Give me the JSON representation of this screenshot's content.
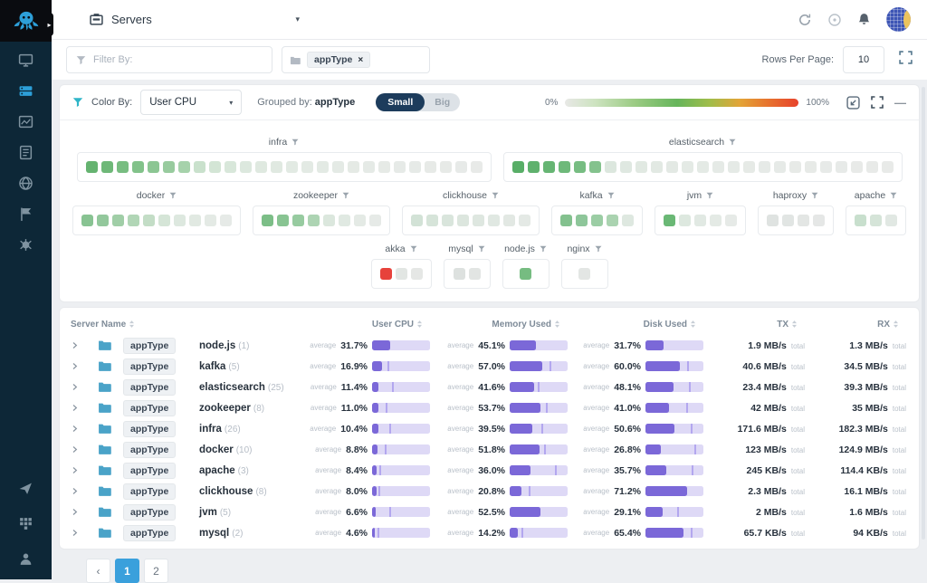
{
  "colors": {
    "accent_purple": "#7b68d8",
    "purple_track": "#ded9f6",
    "green": "#65b370",
    "red": "#e7423b",
    "sidebar_bg": "#0d2737",
    "active_blue": "#2d9fd8"
  },
  "sidebar": {
    "items": [
      {
        "name": "infrastructure",
        "active": false
      },
      {
        "name": "servers",
        "active": true
      },
      {
        "name": "dashboards",
        "active": false
      },
      {
        "name": "logs",
        "active": false
      },
      {
        "name": "alerts",
        "active": false
      },
      {
        "name": "experience",
        "active": false
      },
      {
        "name": "synthetics",
        "active": false
      }
    ],
    "bottom_items": [
      {
        "name": "send"
      },
      {
        "name": "apps"
      },
      {
        "name": "account"
      }
    ]
  },
  "topbar": {
    "app_selector": "Servers",
    "icons": [
      "refresh-icon",
      "status-icon",
      "bell-icon",
      "avatar"
    ]
  },
  "filter_bar": {
    "filter_placeholder": "Filter By:",
    "chip_label": "appType",
    "chip_close": "×",
    "rows_per_page_label": "Rows Per Page:",
    "rows_per_page_value": "10"
  },
  "heatmap": {
    "color_by_label": "Color By:",
    "color_by_value": "User CPU",
    "grouped_by_label": "Grouped by:",
    "grouped_by_value": "appType",
    "toggle_small": "Small",
    "toggle_big": "Big",
    "toggle_selected": "Small",
    "scale_min": "0%",
    "scale_max": "100%",
    "more_label": "—",
    "rows": [
      [
        {
          "name": "infra",
          "cells": [
            "#65b370",
            "#6eb878",
            "#78bd81",
            "#82c28a",
            "#8cc693",
            "#98cb9e",
            "#a6d2ab",
            "#c9e1cc",
            "#d3e5d5",
            "#d8e7da",
            "#dce8de",
            "#dfe9e0",
            "#e0e9e1",
            "#e2eae3",
            "#e3eae4",
            "#e3eae4",
            "#e4eae5",
            "#e5eae5",
            "#e5eae6",
            "#e6eae6",
            "#e6eae7",
            "#e6eae7",
            "#e7eae7",
            "#e7eae7",
            "#e7eae8",
            "#e8eae8"
          ]
        },
        {
          "name": "elasticsearch",
          "cells": [
            "#58ae67",
            "#5fb16d",
            "#66b573",
            "#6eb97a",
            "#77bd82",
            "#84c28d",
            "#dce7de",
            "#dfe8e1",
            "#e1e9e2",
            "#e2e9e3",
            "#e3e9e4",
            "#e4eae5",
            "#e4eae5",
            "#e5eae6",
            "#e5eae6",
            "#e6eae6",
            "#e6eae7",
            "#e6eae7",
            "#e7eae7",
            "#e7eae7",
            "#e7eae8",
            "#e7eae8",
            "#e8eae8",
            "#e8eae8",
            "#e8eae8"
          ]
        }
      ],
      [
        {
          "name": "docker",
          "cells": [
            "#88c392",
            "#93c89c",
            "#a0cea7",
            "#b1d6b6",
            "#c3ddc6",
            "#d5e5d7",
            "#dde8df",
            "#e1e9e2",
            "#e4eae5",
            "#e6eae7"
          ]
        },
        {
          "name": "zookeeper",
          "cells": [
            "#7cbe87",
            "#88c492",
            "#97cba0",
            "#add4b3",
            "#dbe7dd",
            "#e0e9e2",
            "#e4eae5",
            "#e6eae7"
          ]
        },
        {
          "name": "clickhouse",
          "cells": [
            "#d2e2d6",
            "#d6e4d9",
            "#d9e5dc",
            "#dce6de",
            "#dee7e0",
            "#e0e8e2",
            "#e2e8e3",
            "#e4e9e5"
          ]
        },
        {
          "name": "kafka",
          "cells": [
            "#83c18e",
            "#8ec69a",
            "#9bcda4",
            "#aad3b0",
            "#dee8e0"
          ]
        },
        {
          "name": "jvm",
          "cells": [
            "#6ab875",
            "#dde8df",
            "#e1e9e3",
            "#e4eae5",
            "#e6eae7"
          ]
        },
        {
          "name": "haproxy",
          "cells": [
            "#dfe3e1",
            "#e1e5e3",
            "#e3e6e4",
            "#e5e7e6"
          ]
        },
        {
          "name": "apache",
          "cells": [
            "#c8dfcd",
            "#d5e4d8",
            "#e1e8e3"
          ]
        }
      ],
      [
        {
          "name": "akka",
          "cells": [
            "#e7423b",
            "#e2e6e3",
            "#e5e7e5"
          ]
        },
        {
          "name": "mysql",
          "cells": [
            "#dde1df",
            "#e2e5e3"
          ]
        },
        {
          "name": "node.js",
          "cells": [
            "#76bc81"
          ]
        },
        {
          "name": "nginx",
          "cells": [
            "#e3e6e4"
          ]
        }
      ]
    ]
  },
  "table": {
    "columns": [
      "Server Name",
      "User CPU",
      "Memory Used",
      "Disk Used",
      "TX",
      "RX"
    ],
    "chip_label": "appType",
    "average_label": "average",
    "total_label": "total",
    "rows": [
      {
        "name": "node.js",
        "count": "(1)",
        "cpu": "31.7%",
        "cpu_v": 31.7,
        "cpu_m": null,
        "mem": "45.1%",
        "mem_v": 45.1,
        "mem_m": null,
        "disk": "31.7%",
        "disk_v": 31.7,
        "disk_m": null,
        "tx": "1.9 MB/s",
        "rx": "1.3 MB/s"
      },
      {
        "name": "kafka",
        "count": "(5)",
        "cpu": "16.9%",
        "cpu_v": 16.9,
        "cpu_m": 26,
        "mem": "57.0%",
        "mem_v": 57.0,
        "mem_m": 68,
        "disk": "60.0%",
        "disk_v": 60.0,
        "disk_m": 72,
        "tx": "40.6 MB/s",
        "rx": "34.5 MB/s"
      },
      {
        "name": "elasticsearch",
        "count": "(25)",
        "cpu": "11.4%",
        "cpu_v": 11.4,
        "cpu_m": 34,
        "mem": "41.6%",
        "mem_v": 41.6,
        "mem_m": 48,
        "disk": "48.1%",
        "disk_v": 48.1,
        "disk_m": 75,
        "tx": "23.4 MB/s",
        "rx": "39.3 MB/s"
      },
      {
        "name": "zookeeper",
        "count": "(8)",
        "cpu": "11.0%",
        "cpu_v": 11.0,
        "cpu_m": 24,
        "mem": "53.7%",
        "mem_v": 53.7,
        "mem_m": 62,
        "disk": "41.0%",
        "disk_v": 41.0,
        "disk_m": 70,
        "tx": "42 MB/s",
        "rx": "35 MB/s"
      },
      {
        "name": "infra",
        "count": "(26)",
        "cpu": "10.4%",
        "cpu_v": 10.4,
        "cpu_m": 30,
        "mem": "39.5%",
        "mem_v": 39.5,
        "mem_m": 55,
        "disk": "50.6%",
        "disk_v": 50.6,
        "disk_m": 78,
        "tx": "171.6 MB/s",
        "rx": "182.3 MB/s"
      },
      {
        "name": "docker",
        "count": "(10)",
        "cpu": "8.8%",
        "cpu_v": 8.8,
        "cpu_m": 22,
        "mem": "51.8%",
        "mem_v": 51.8,
        "mem_m": 60,
        "disk": "26.8%",
        "disk_v": 26.8,
        "disk_m": 85,
        "tx": "123 MB/s",
        "rx": "124.9 MB/s"
      },
      {
        "name": "apache",
        "count": "(3)",
        "cpu": "8.4%",
        "cpu_v": 8.4,
        "cpu_m": 13,
        "mem": "36.0%",
        "mem_v": 36.0,
        "mem_m": 78,
        "disk": "35.7%",
        "disk_v": 35.7,
        "disk_m": 80,
        "tx": "245 KB/s",
        "rx": "114.4 KB/s"
      },
      {
        "name": "clickhouse",
        "count": "(8)",
        "cpu": "8.0%",
        "cpu_v": 8.0,
        "cpu_m": 11,
        "mem": "20.8%",
        "mem_v": 20.8,
        "mem_m": 33,
        "disk": "71.2%",
        "disk_v": 71.2,
        "disk_m": null,
        "tx": "2.3 MB/s",
        "rx": "16.1 MB/s"
      },
      {
        "name": "jvm",
        "count": "(5)",
        "cpu": "6.6%",
        "cpu_v": 6.6,
        "cpu_m": 29,
        "mem": "52.5%",
        "mem_v": 52.5,
        "mem_m": null,
        "disk": "29.1%",
        "disk_v": 29.1,
        "disk_m": 55,
        "tx": "2 MB/s",
        "rx": "1.6 MB/s"
      },
      {
        "name": "mysql",
        "count": "(2)",
        "cpu": "4.6%",
        "cpu_v": 4.6,
        "cpu_m": 9,
        "mem": "14.2%",
        "mem_v": 14.2,
        "mem_m": 20,
        "disk": "65.4%",
        "disk_v": 65.4,
        "disk_m": 78,
        "tx": "65.7 KB/s",
        "rx": "94 KB/s"
      }
    ]
  },
  "pagination": {
    "prev": "‹",
    "page": "1",
    "next": "2"
  }
}
